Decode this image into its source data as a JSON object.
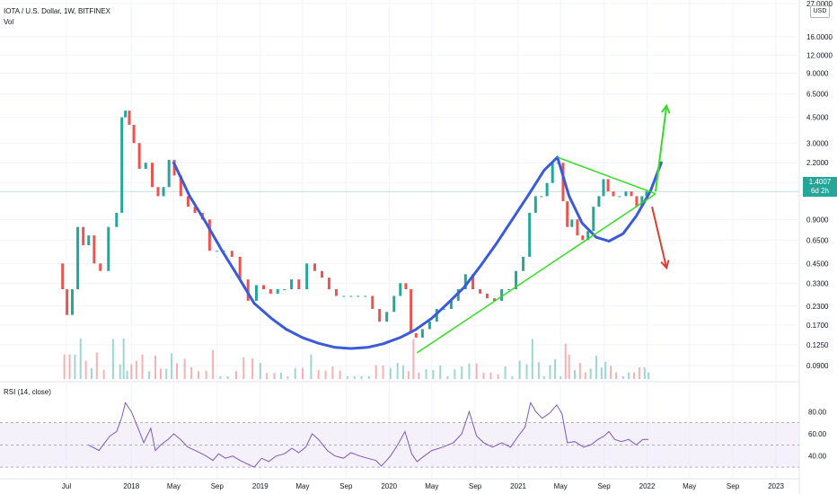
{
  "header": {
    "symbol_line": "IOTA / U.S. Dollar, 1W, BITFINEX",
    "volume_label": "Vol",
    "rsi_label": "RSI (14, close)"
  },
  "currency_button": "USD",
  "last_price": {
    "value": "1.4007",
    "countdown": "6d 2h"
  },
  "colors": {
    "up": "#26a69a",
    "down": "#ef5350",
    "cup": "#3a5bd9",
    "triangle": "#33dd22",
    "arrow_up": "#33dd22",
    "arrow_down": "#e53935",
    "rsi_line": "#7e57c2",
    "rsi_band": "#ede7f6"
  },
  "chart_data": [
    {
      "type": "candlestick",
      "title": "IOTA / U.S. Dollar, 1W, BITFINEX",
      "y_scale": "log",
      "y_ticks": [
        "27.0000",
        "16.0000",
        "12.0000",
        "9.0000",
        "6.5000",
        "4.5000",
        "3.0000",
        "2.2000",
        "1.6000",
        "0.9000",
        "0.6500",
        "0.4500",
        "0.3300",
        "0.2300",
        "0.1700",
        "0.1250",
        "0.0900"
      ],
      "y_tick_values": [
        27,
        16,
        12,
        9,
        6.5,
        4.5,
        3,
        2.2,
        1.6,
        0.9,
        0.65,
        0.45,
        0.33,
        0.23,
        0.17,
        0.125,
        0.09
      ],
      "ylim": [
        0.075,
        27
      ],
      "x_ticks": [
        "Jul",
        "2018",
        "May",
        "Sep",
        "2019",
        "May",
        "Sep",
        "2020",
        "May",
        "Sep",
        "2021",
        "May",
        "Sep",
        "2022",
        "May",
        "Sep",
        "2023"
      ],
      "x_tick_dates": [
        "2017-07-01",
        "2018-01-01",
        "2018-05-01",
        "2018-09-01",
        "2019-01-01",
        "2019-05-01",
        "2019-09-01",
        "2020-01-01",
        "2020-05-01",
        "2020-09-01",
        "2021-01-01",
        "2021-05-01",
        "2021-09-01",
        "2022-01-01",
        "2022-05-01",
        "2022-09-01",
        "2023-01-01"
      ],
      "price_path": [
        [
          "2017-06-15",
          0.45
        ],
        [
          "2017-06-25",
          0.3
        ],
        [
          "2017-07-10",
          0.2
        ],
        [
          "2017-07-25",
          0.3
        ],
        [
          "2017-08-10",
          0.8
        ],
        [
          "2017-08-25",
          0.6
        ],
        [
          "2017-09-10",
          0.7
        ],
        [
          "2017-09-25",
          0.45
        ],
        [
          "2017-10-15",
          0.4
        ],
        [
          "2017-11-10",
          0.8
        ],
        [
          "2017-11-30",
          1.0
        ],
        [
          "2017-12-10",
          4.5
        ],
        [
          "2017-12-20",
          5.0
        ],
        [
          "2018-01-01",
          4.0
        ],
        [
          "2018-01-15",
          3.0
        ],
        [
          "2018-02-01",
          2.0
        ],
        [
          "2018-02-20",
          2.2
        ],
        [
          "2018-03-10",
          1.5
        ],
        [
          "2018-03-25",
          1.3
        ],
        [
          "2018-04-10",
          1.5
        ],
        [
          "2018-04-25",
          2.3
        ],
        [
          "2018-05-10",
          1.8
        ],
        [
          "2018-06-01",
          1.3
        ],
        [
          "2018-06-20",
          1.1
        ],
        [
          "2018-07-10",
          1.0
        ],
        [
          "2018-08-01",
          0.9
        ],
        [
          "2018-08-20",
          0.55
        ],
        [
          "2018-09-10",
          0.55
        ],
        [
          "2018-10-01",
          0.55
        ],
        [
          "2018-10-25",
          0.5
        ],
        [
          "2018-11-15",
          0.35
        ],
        [
          "2018-12-10",
          0.25
        ],
        [
          "2019-01-01",
          0.32
        ],
        [
          "2019-01-20",
          0.3
        ],
        [
          "2019-02-10",
          0.28
        ],
        [
          "2019-03-01",
          0.3
        ],
        [
          "2019-03-20",
          0.3
        ],
        [
          "2019-04-10",
          0.35
        ],
        [
          "2019-05-01",
          0.3
        ],
        [
          "2019-05-25",
          0.45
        ],
        [
          "2019-06-15",
          0.4
        ],
        [
          "2019-07-05",
          0.36
        ],
        [
          "2019-07-25",
          0.3
        ],
        [
          "2019-08-15",
          0.27
        ],
        [
          "2019-09-05",
          0.27
        ],
        [
          "2019-09-25",
          0.27
        ],
        [
          "2019-10-15",
          0.27
        ],
        [
          "2019-11-05",
          0.27
        ],
        [
          "2019-11-25",
          0.22
        ],
        [
          "2019-12-15",
          0.18
        ],
        [
          "2020-01-05",
          0.21
        ],
        [
          "2020-01-25",
          0.27
        ],
        [
          "2020-02-10",
          0.33
        ],
        [
          "2020-02-25",
          0.3
        ],
        [
          "2020-03-10",
          0.15
        ],
        [
          "2020-03-25",
          0.14
        ],
        [
          "2020-04-15",
          0.16
        ],
        [
          "2020-05-05",
          0.18
        ],
        [
          "2020-05-25",
          0.22
        ],
        [
          "2020-06-15",
          0.22
        ],
        [
          "2020-07-05",
          0.25
        ],
        [
          "2020-07-25",
          0.3
        ],
        [
          "2020-08-15",
          0.38
        ],
        [
          "2020-09-05",
          0.3
        ],
        [
          "2020-09-25",
          0.28
        ],
        [
          "2020-10-15",
          0.26
        ],
        [
          "2020-11-05",
          0.25
        ],
        [
          "2020-11-25",
          0.3
        ],
        [
          "2020-12-15",
          0.3
        ],
        [
          "2021-01-05",
          0.4
        ],
        [
          "2021-01-25",
          0.5
        ],
        [
          "2021-02-10",
          1.0
        ],
        [
          "2021-02-28",
          1.3
        ],
        [
          "2021-03-15",
          1.3
        ],
        [
          "2021-04-01",
          1.6
        ],
        [
          "2021-04-15",
          2.2
        ],
        [
          "2021-05-01",
          2.2
        ],
        [
          "2021-05-15",
          1.2
        ],
        [
          "2021-05-25",
          0.8
        ],
        [
          "2021-06-10",
          0.9
        ],
        [
          "2021-06-25",
          0.7
        ],
        [
          "2021-07-10",
          0.65
        ],
        [
          "2021-07-25",
          0.75
        ],
        [
          "2021-08-10",
          1.1
        ],
        [
          "2021-08-25",
          1.3
        ],
        [
          "2021-09-05",
          1.7
        ],
        [
          "2021-09-20",
          1.4
        ],
        [
          "2021-10-05",
          1.3
        ],
        [
          "2021-10-25",
          1.3
        ],
        [
          "2021-11-10",
          1.4
        ],
        [
          "2021-11-25",
          1.3
        ],
        [
          "2021-12-10",
          1.1
        ],
        [
          "2021-12-25",
          1.3
        ],
        [
          "2022-01-05",
          1.4
        ]
      ],
      "cup_curve": [
        [
          "2018-05-01",
          2.2
        ],
        [
          "2018-06-15",
          1.3
        ],
        [
          "2018-08-01",
          0.85
        ],
        [
          "2018-09-15",
          0.55
        ],
        [
          "2018-11-01",
          0.36
        ],
        [
          "2018-12-15",
          0.24
        ],
        [
          "2019-02-01",
          0.19
        ],
        [
          "2019-03-15",
          0.16
        ],
        [
          "2019-05-01",
          0.14
        ],
        [
          "2019-06-15",
          0.128
        ],
        [
          "2019-08-01",
          0.12
        ],
        [
          "2019-09-15",
          0.118
        ],
        [
          "2019-11-01",
          0.12
        ],
        [
          "2019-12-15",
          0.127
        ],
        [
          "2020-02-01",
          0.14
        ],
        [
          "2020-03-15",
          0.158
        ],
        [
          "2020-05-01",
          0.19
        ],
        [
          "2020-06-15",
          0.24
        ],
        [
          "2020-08-01",
          0.31
        ],
        [
          "2020-09-15",
          0.43
        ],
        [
          "2020-11-01",
          0.62
        ],
        [
          "2020-12-15",
          0.9
        ],
        [
          "2021-02-01",
          1.35
        ],
        [
          "2021-03-15",
          1.95
        ],
        [
          "2021-04-22",
          2.4
        ]
      ],
      "handle_curve": [
        [
          "2021-04-22",
          2.4
        ],
        [
          "2021-05-25",
          1.3
        ],
        [
          "2021-07-01",
          0.85
        ],
        [
          "2021-08-10",
          0.68
        ],
        [
          "2021-09-15",
          0.64
        ],
        [
          "2021-10-25",
          0.72
        ],
        [
          "2021-12-01",
          0.95
        ],
        [
          "2022-01-10",
          1.4
        ],
        [
          "2022-02-10",
          2.2
        ]
      ],
      "triangle": {
        "top": [
          [
            "2021-04-22",
            2.4
          ],
          [
            "2022-01-25",
            1.35
          ]
        ],
        "bottom": [
          [
            "2020-03-20",
            0.11
          ],
          [
            "2022-01-25",
            1.35
          ]
        ]
      },
      "arrows": [
        {
          "label": "breakout",
          "from": [
            "2022-01-25",
            1.4
          ],
          "to": [
            "2022-02-25",
            5.4
          ]
        },
        {
          "label": "breakdown",
          "from": [
            "2022-01-15",
            1.1
          ],
          "to": [
            "2022-02-25",
            0.42
          ]
        }
      ],
      "last_price_line": 1.4007,
      "volume": {
        "label": "Vol"
      }
    },
    {
      "type": "line",
      "title": "RSI (14, close)",
      "y_ticks": [
        "80.00",
        "60.00",
        "40.00"
      ],
      "y_tick_values": [
        80,
        60,
        40
      ],
      "ylim": [
        22,
        98
      ],
      "bands": [
        70,
        50,
        30
      ],
      "values": [
        [
          "2017-09-01",
          50
        ],
        [
          "2017-10-01",
          45
        ],
        [
          "2017-11-01",
          58
        ],
        [
          "2017-11-20",
          62
        ],
        [
          "2017-12-05",
          75
        ],
        [
          "2017-12-15",
          88
        ],
        [
          "2018-01-01",
          80
        ],
        [
          "2018-01-20",
          65
        ],
        [
          "2018-02-05",
          52
        ],
        [
          "2018-02-25",
          65
        ],
        [
          "2018-03-10",
          45
        ],
        [
          "2018-03-25",
          50
        ],
        [
          "2018-04-15",
          55
        ],
        [
          "2018-05-01",
          60
        ],
        [
          "2018-05-20",
          55
        ],
        [
          "2018-06-10",
          48
        ],
        [
          "2018-07-01",
          45
        ],
        [
          "2018-08-01",
          40
        ],
        [
          "2018-08-20",
          36
        ],
        [
          "2018-09-05",
          42
        ],
        [
          "2018-09-25",
          38
        ],
        [
          "2018-10-15",
          40
        ],
        [
          "2018-11-05",
          36
        ],
        [
          "2018-11-25",
          33
        ],
        [
          "2018-12-15",
          30
        ],
        [
          "2019-01-05",
          38
        ],
        [
          "2019-01-25",
          35
        ],
        [
          "2019-02-15",
          40
        ],
        [
          "2019-03-10",
          42
        ],
        [
          "2019-04-01",
          47
        ],
        [
          "2019-04-20",
          43
        ],
        [
          "2019-05-10",
          48
        ],
        [
          "2019-05-28",
          60
        ],
        [
          "2019-06-15",
          55
        ],
        [
          "2019-07-10",
          45
        ],
        [
          "2019-08-01",
          40
        ],
        [
          "2019-08-25",
          38
        ],
        [
          "2019-09-15",
          43
        ],
        [
          "2019-10-10",
          40
        ],
        [
          "2019-11-01",
          38
        ],
        [
          "2019-11-25",
          36
        ],
        [
          "2019-12-10",
          31
        ],
        [
          "2020-01-05",
          40
        ],
        [
          "2020-01-25",
          50
        ],
        [
          "2020-02-15",
          62
        ],
        [
          "2020-03-05",
          42
        ],
        [
          "2020-03-20",
          35
        ],
        [
          "2020-04-10",
          40
        ],
        [
          "2020-05-01",
          45
        ],
        [
          "2020-06-01",
          48
        ],
        [
          "2020-07-01",
          52
        ],
        [
          "2020-07-25",
          60
        ],
        [
          "2020-08-15",
          80
        ],
        [
          "2020-09-05",
          58
        ],
        [
          "2020-09-25",
          52
        ],
        [
          "2020-10-20",
          48
        ],
        [
          "2020-11-15",
          52
        ],
        [
          "2020-12-10",
          48
        ],
        [
          "2021-01-01",
          58
        ],
        [
          "2021-01-20",
          66
        ],
        [
          "2021-02-05",
          88
        ],
        [
          "2021-02-20",
          80
        ],
        [
          "2021-03-10",
          74
        ],
        [
          "2021-04-01",
          79
        ],
        [
          "2021-04-20",
          86
        ],
        [
          "2021-05-05",
          78
        ],
        [
          "2021-05-20",
          52
        ],
        [
          "2021-06-10",
          53
        ],
        [
          "2021-07-05",
          48
        ],
        [
          "2021-07-25",
          50
        ],
        [
          "2021-08-15",
          55
        ],
        [
          "2021-09-01",
          58
        ],
        [
          "2021-09-15",
          62
        ],
        [
          "2021-10-01",
          55
        ],
        [
          "2021-10-20",
          53
        ],
        [
          "2021-11-10",
          55
        ],
        [
          "2021-12-01",
          50
        ],
        [
          "2021-12-20",
          55
        ],
        [
          "2022-01-05",
          55
        ]
      ]
    }
  ]
}
